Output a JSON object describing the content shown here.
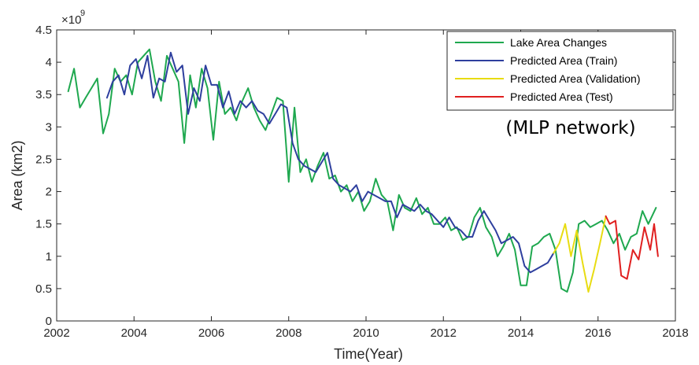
{
  "chart_data": {
    "type": "line",
    "xlabel": "Time(Year)",
    "ylabel": "Area (km2)",
    "exponent_base": "×10",
    "exponent_power": "9",
    "annotation": "(MLP network)",
    "xlim": [
      2002,
      2018
    ],
    "ylim": [
      0,
      4.5
    ],
    "xticks": [
      2002,
      2004,
      2006,
      2008,
      2010,
      2012,
      2014,
      2016,
      2018
    ],
    "yticks": [
      0,
      0.5,
      1,
      1.5,
      2,
      2.5,
      3,
      3.5,
      4,
      4.5
    ],
    "ytick_labels": [
      "0",
      "0.5",
      "1",
      "1.5",
      "2",
      "2.5",
      "3",
      "3.5",
      "4",
      "4.5"
    ],
    "grid": false,
    "legend_position": "top-right",
    "series": [
      {
        "name": "Lake Area Changes",
        "color": "#1fa84f",
        "x": [
          2002.3,
          2002.45,
          2002.6,
          2002.75,
          2002.9,
          2003.05,
          2003.2,
          2003.35,
          2003.5,
          2003.65,
          2003.8,
          2003.95,
          2004.1,
          2004.25,
          2004.4,
          2004.55,
          2004.7,
          2004.85,
          2005.0,
          2005.15,
          2005.3,
          2005.45,
          2005.6,
          2005.75,
          2005.9,
          2006.05,
          2006.2,
          2006.35,
          2006.5,
          2006.65,
          2006.8,
          2006.95,
          2007.1,
          2007.25,
          2007.4,
          2007.55,
          2007.7,
          2007.85,
          2008.0,
          2008.15,
          2008.3,
          2008.45,
          2008.6,
          2008.75,
          2008.9,
          2009.05,
          2009.2,
          2009.35,
          2009.5,
          2009.65,
          2009.8,
          2009.95,
          2010.1,
          2010.25,
          2010.4,
          2010.55,
          2010.7,
          2010.85,
          2011.0,
          2011.15,
          2011.3,
          2011.45,
          2011.6,
          2011.75,
          2011.9,
          2012.05,
          2012.2,
          2012.35,
          2012.5,
          2012.65,
          2012.8,
          2012.95,
          2013.1,
          2013.25,
          2013.4,
          2013.55,
          2013.7,
          2013.85,
          2014.0,
          2014.15,
          2014.3,
          2014.45,
          2014.6,
          2014.75,
          2014.9,
          2015.05,
          2015.2,
          2015.35,
          2015.5,
          2015.65,
          2015.8,
          2015.95,
          2016.1,
          2016.25,
          2016.4,
          2016.55,
          2016.7,
          2016.85,
          2017.0,
          2017.15,
          2017.3,
          2017.5
        ],
        "values": [
          3.55,
          3.9,
          3.3,
          3.45,
          3.6,
          3.75,
          2.9,
          3.2,
          3.9,
          3.7,
          3.8,
          3.5,
          4.0,
          4.1,
          4.2,
          3.7,
          3.4,
          4.1,
          3.9,
          3.7,
          2.75,
          3.8,
          3.3,
          3.9,
          3.6,
          2.8,
          3.7,
          3.2,
          3.3,
          3.1,
          3.4,
          3.6,
          3.3,
          3.1,
          2.95,
          3.2,
          3.45,
          3.4,
          2.15,
          3.3,
          2.3,
          2.5,
          2.15,
          2.4,
          2.6,
          2.2,
          2.25,
          2.0,
          2.1,
          1.85,
          2.0,
          1.7,
          1.85,
          2.2,
          1.95,
          1.85,
          1.4,
          1.95,
          1.75,
          1.7,
          1.9,
          1.65,
          1.75,
          1.5,
          1.5,
          1.6,
          1.4,
          1.45,
          1.25,
          1.3,
          1.6,
          1.75,
          1.45,
          1.3,
          1.0,
          1.15,
          1.35,
          1.1,
          0.55,
          0.55,
          1.15,
          1.2,
          1.3,
          1.35,
          1.1,
          0.5,
          0.45,
          0.75,
          1.5,
          1.55,
          1.45,
          1.5,
          1.55,
          1.4,
          1.2,
          1.35,
          1.1,
          1.3,
          1.35,
          1.7,
          1.5,
          1.75
        ]
      },
      {
        "name": "Predicted Area (Train)",
        "color": "#2e3f9e",
        "x": [
          2003.3,
          2003.45,
          2003.6,
          2003.75,
          2003.9,
          2004.05,
          2004.2,
          2004.35,
          2004.5,
          2004.65,
          2004.8,
          2004.95,
          2005.1,
          2005.25,
          2005.4,
          2005.55,
          2005.7,
          2005.85,
          2006.0,
          2006.15,
          2006.3,
          2006.45,
          2006.6,
          2006.75,
          2006.9,
          2007.05,
          2007.2,
          2007.35,
          2007.5,
          2007.65,
          2007.8,
          2007.95,
          2008.1,
          2008.25,
          2008.4,
          2008.55,
          2008.7,
          2008.85,
          2009.0,
          2009.15,
          2009.3,
          2009.45,
          2009.6,
          2009.75,
          2009.9,
          2010.05,
          2010.2,
          2010.35,
          2010.5,
          2010.65,
          2010.8,
          2010.95,
          2011.1,
          2011.25,
          2011.4,
          2011.55,
          2011.7,
          2011.85,
          2012.0,
          2012.15,
          2012.3,
          2012.45,
          2012.6,
          2012.75,
          2012.9,
          2013.05,
          2013.2,
          2013.35,
          2013.5,
          2013.65,
          2013.8,
          2013.95,
          2014.1,
          2014.25,
          2014.4,
          2014.55,
          2014.7,
          2014.85
        ],
        "values": [
          3.45,
          3.7,
          3.8,
          3.5,
          3.95,
          4.05,
          3.75,
          4.1,
          3.45,
          3.75,
          3.7,
          4.15,
          3.85,
          3.95,
          3.2,
          3.6,
          3.4,
          3.95,
          3.65,
          3.65,
          3.3,
          3.55,
          3.2,
          3.4,
          3.3,
          3.4,
          3.25,
          3.2,
          3.05,
          3.2,
          3.35,
          3.3,
          2.75,
          2.5,
          2.4,
          2.35,
          2.3,
          2.45,
          2.6,
          2.2,
          2.1,
          2.05,
          2.0,
          2.1,
          1.85,
          2.0,
          1.95,
          1.9,
          1.85,
          1.85,
          1.6,
          1.8,
          1.75,
          1.7,
          1.8,
          1.7,
          1.65,
          1.55,
          1.45,
          1.6,
          1.45,
          1.4,
          1.3,
          1.3,
          1.55,
          1.7,
          1.55,
          1.4,
          1.2,
          1.25,
          1.3,
          1.2,
          0.85,
          0.75,
          0.8,
          0.85,
          0.9,
          1.05
        ]
      },
      {
        "name": "Predicted Area (Validation)",
        "color": "#e8dc12",
        "x": [
          2014.85,
          2015.0,
          2015.15,
          2015.3,
          2015.45,
          2015.6,
          2015.75,
          2015.9,
          2016.05,
          2016.2
        ],
        "values": [
          1.05,
          1.2,
          1.5,
          1.0,
          1.4,
          0.9,
          0.45,
          0.8,
          1.2,
          1.62
        ]
      },
      {
        "name": "Predicted Area (Test)",
        "color": "#e02020",
        "x": [
          2016.2,
          2016.3,
          2016.45,
          2016.6,
          2016.75,
          2016.9,
          2017.05,
          2017.2,
          2017.35,
          2017.45,
          2017.55
        ],
        "values": [
          1.62,
          1.5,
          1.55,
          0.7,
          0.65,
          1.1,
          0.95,
          1.45,
          1.1,
          1.5,
          1.0
        ]
      }
    ]
  }
}
